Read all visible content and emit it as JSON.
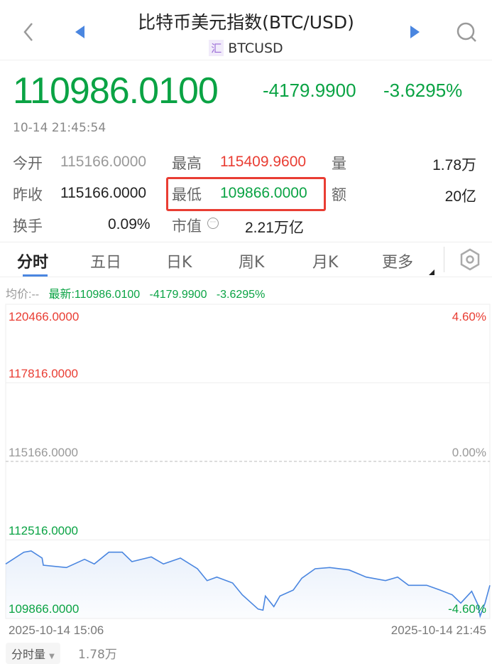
{
  "header": {
    "title": "比特币美元指数(BTC/USD)",
    "badge": "汇",
    "symbol": "BTCUSD"
  },
  "quote": {
    "price": "110986.0100",
    "change": "-4179.9900",
    "change_pct": "-3.6295%",
    "time": "10-14 21:45:54"
  },
  "stats": [
    {
      "label": "今开",
      "value": "115166.0000"
    },
    {
      "label": "最高",
      "value": "115409.9600"
    },
    {
      "label": "量",
      "value": "1.78万"
    },
    {
      "label": "昨收",
      "value": "115166.0000"
    },
    {
      "label": "最低",
      "value": "109866.0000"
    },
    {
      "label": "额",
      "value": "20亿"
    },
    {
      "label": "换手",
      "value": "0.09%"
    },
    {
      "label": "市值",
      "value": "2.21万亿"
    }
  ],
  "tabs": [
    "分时",
    "五日",
    "日K",
    "周K",
    "月K",
    "更多"
  ],
  "info": {
    "avg": "均价:--",
    "latest": "最新:110986.0100",
    "change": "-4179.9900",
    "pct": "-3.6295%"
  },
  "colors": {
    "up": "#e93d33",
    "down": "#0aa344",
    "line": "#4a86e0",
    "accent": "#4a86e0",
    "highlight": "#e93d33"
  },
  "chart_data": {
    "type": "line",
    "ylim": [
      109866,
      120466
    ],
    "yticks": [
      "120466.0000",
      "117816.0000",
      "115166.0000",
      "112516.0000",
      "109866.0000"
    ],
    "pct_ticks": [
      "4.60%",
      "0.00%",
      "-4.60%"
    ],
    "xlabels": [
      "2025-10-14 15:06",
      "2025-10-14 21:45"
    ],
    "x": [
      "15:06",
      "15:21",
      "15:27",
      "15:36",
      "15:37",
      "15:56",
      "16:11",
      "16:19",
      "16:31",
      "16:42",
      "16:50",
      "17:06",
      "17:16",
      "17:30",
      "17:44",
      "17:52",
      "18:00",
      "18:13",
      "18:21",
      "18:34",
      "18:38",
      "18:40",
      "18:47",
      "18:52",
      "19:03",
      "19:10",
      "19:21",
      "19:33",
      "19:49",
      "20:03",
      "20:19",
      "20:29",
      "20:38",
      "20:53",
      "21:04",
      "21:14",
      "21:21",
      "21:30",
      "21:35",
      "21:37",
      "21:41",
      "21:45"
    ],
    "values": [
      111705,
      112103,
      112144,
      111904,
      111665,
      111586,
      111864,
      111705,
      112103,
      112103,
      111784,
      111944,
      111705,
      111904,
      111545,
      111144,
      111264,
      111065,
      110664,
      110185,
      110146,
      110625,
      110266,
      110625,
      110825,
      111225,
      111545,
      111586,
      111505,
      111264,
      111144,
      111264,
      110985,
      110985,
      110825,
      110664,
      110386,
      110784,
      110346,
      109945,
      110386,
      110986
    ]
  },
  "volume": {
    "label": "分时量",
    "value": "1.78万"
  }
}
